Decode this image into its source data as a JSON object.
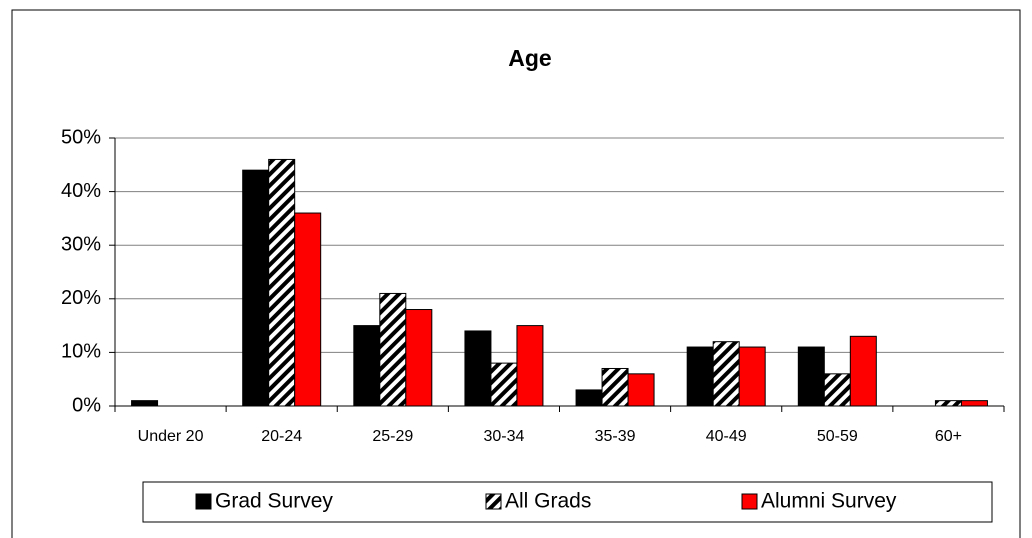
{
  "chart_data": {
    "type": "bar",
    "title": "Age",
    "categories": [
      "Under 20",
      "20-24",
      "25-29",
      "30-34",
      "35-39",
      "40-49",
      "50-59",
      "60+"
    ],
    "series": [
      {
        "name": "Grad Survey",
        "color": "#000000",
        "values": [
          1,
          44,
          15,
          14,
          3,
          11,
          11,
          0
        ]
      },
      {
        "name": "All Grads",
        "color": "#000000",
        "pattern": "hatch",
        "values": [
          0,
          46,
          21,
          8,
          7,
          12,
          6,
          1
        ]
      },
      {
        "name": "Alumni Survey",
        "color": "#ff0000",
        "values": [
          0,
          36,
          18,
          15,
          6,
          11,
          13,
          1
        ]
      }
    ],
    "ylim": [
      0,
      50
    ],
    "yticks": [
      {
        "value": 0,
        "label": "0%"
      },
      {
        "value": 10,
        "label": "10%"
      },
      {
        "value": 20,
        "label": "20%"
      },
      {
        "value": 30,
        "label": "30%"
      },
      {
        "value": 40,
        "label": "40%"
      },
      {
        "value": 50,
        "label": "50%"
      }
    ],
    "grid": true,
    "legend": "bottom"
  }
}
